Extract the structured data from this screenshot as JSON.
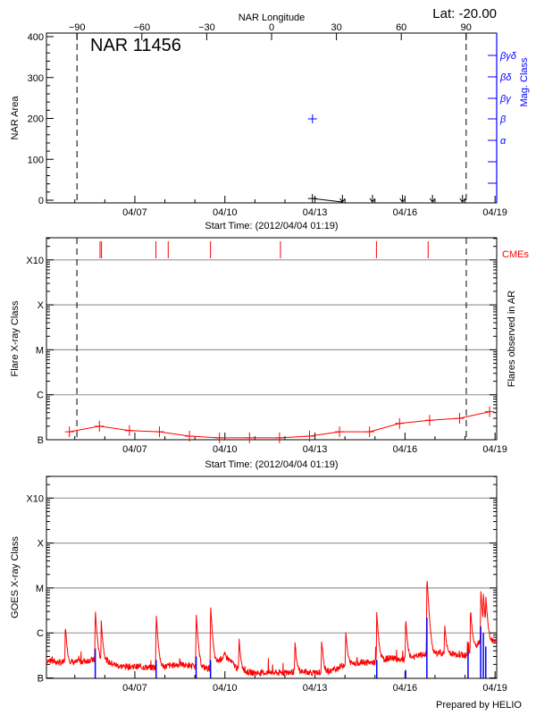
{
  "header": {
    "lat_label": "Lat: -20.00",
    "prepared_by": "Prepared by HELIO"
  },
  "chart_data": [
    {
      "type": "scatter",
      "title": "NAR 11456",
      "top_axis_label": "NAR Longitude",
      "top_ticks": [
        -90,
        -60,
        -30,
        0,
        30,
        60,
        90
      ],
      "xlabel": "Start Time: (2012/04/04 01:19)",
      "xticks": [
        "04/07",
        "04/10",
        "04/13",
        "04/16",
        "04/19"
      ],
      "ylabel": "NAR Area",
      "ylim": [
        0,
        400
      ],
      "yticks": [
        0,
        100,
        200,
        300,
        400
      ],
      "y2label": "Mag. Class",
      "y2ticks": [
        "α",
        "β",
        "βγ",
        "βδ",
        "βγδ"
      ],
      "limb_longitudes": [
        -90,
        90
      ],
      "area": [
        {
          "t": "04/12 22:00",
          "v": 4,
          "marker": "plus"
        },
        {
          "t": "04/13 22:00",
          "v": 0,
          "marker": "arrow-down"
        },
        {
          "t": "04/14 22:00",
          "v": 0,
          "marker": "arrow-down"
        },
        {
          "t": "04/15 22:00",
          "v": 0,
          "marker": "arrow-down"
        },
        {
          "t": "04/16 22:00",
          "v": 0,
          "marker": "arrow-down"
        },
        {
          "t": "04/17 22:00",
          "v": 0,
          "marker": "arrow-down"
        }
      ],
      "mag_class": [
        {
          "t": "04/12 22:00",
          "class": "β"
        }
      ],
      "colors": {
        "area": "#000000",
        "mag": "#0000ff"
      }
    },
    {
      "type": "line",
      "xlabel": "Start Time: (2012/04/04 01:19)",
      "xticks": [
        "04/07",
        "04/10",
        "04/13",
        "04/16",
        "04/19"
      ],
      "ylabel": "Flare X-ray Class",
      "y2label": "Flares observed in AR",
      "yticks": [
        "B",
        "C",
        "M",
        "X",
        "X10"
      ],
      "grid": true,
      "cme_label": "CMEs",
      "cme_times": [
        "04/05 20:10",
        "04/05 21:20",
        "04/07 16:50",
        "04/08 02:40",
        "04/09 12:30",
        "04/11 20:25",
        "04/15 01:10",
        "04/16 18:30"
      ],
      "limb_crossings": [
        "04/05 01:40",
        "04/18 01:00"
      ],
      "flares": [
        {
          "t": "04/04 19:40",
          "class": "B1.5"
        },
        {
          "t": "04/05 19:40",
          "class": "B2.0"
        },
        {
          "t": "04/06 19:40",
          "class": "B1.6"
        },
        {
          "t": "04/07 19:40",
          "class": "B1.5"
        },
        {
          "t": "04/08 19:40",
          "class": "B1.2"
        },
        {
          "t": "04/09 19:40",
          "class": "B1.1"
        },
        {
          "t": "04/10 19:40",
          "class": "B1.1"
        },
        {
          "t": "04/11 19:40",
          "class": "B1.1"
        },
        {
          "t": "04/12 19:40",
          "class": "B1.2"
        },
        {
          "t": "04/13 19:40",
          "class": "B1.5"
        },
        {
          "t": "04/14 19:40",
          "class": "B1.5"
        },
        {
          "t": "04/15 19:40",
          "class": "B2.3"
        },
        {
          "t": "04/16 19:40",
          "class": "B2.7"
        },
        {
          "t": "04/17 19:40",
          "class": "B3.0"
        },
        {
          "t": "04/18 19:40",
          "class": "B4.2"
        }
      ],
      "colors": {
        "flares": "#ff0000",
        "cme": "#ff0000"
      }
    },
    {
      "type": "line",
      "xticks": [
        "04/07",
        "04/10",
        "04/13",
        "04/16",
        "04/19"
      ],
      "ylabel": "GOES X-ray Class",
      "yticks": [
        "B",
        "C",
        "M",
        "X",
        "X10"
      ],
      "grid": true,
      "series": [
        {
          "color": "#ff0000",
          "baseline": [
            [
              "04/04 00:00",
              "B2.5"
            ],
            [
              "04/04 12:00",
              "B2.2"
            ],
            [
              "04/05 00:00",
              "B2.2"
            ],
            [
              "04/05 12:00",
              "B2.5"
            ],
            [
              "04/06 00:00",
              "B2.4"
            ],
            [
              "04/06 12:00",
              "B1.8"
            ],
            [
              "04/07 00:00",
              "B1.8"
            ],
            [
              "04/07 12:00",
              "B1.7"
            ],
            [
              "04/08 00:00",
              "B1.8"
            ],
            [
              "04/08 12:00",
              "B2.0"
            ],
            [
              "04/09 00:00",
              "B1.8"
            ],
            [
              "04/09 12:00",
              "B1.6"
            ],
            [
              "04/10 00:00",
              "B3.2"
            ],
            [
              "04/10 12:00",
              "B1.4"
            ],
            [
              "04/11 00:00",
              "B1.3"
            ],
            [
              "04/11 12:00",
              "B1.3"
            ],
            [
              "04/12 00:00",
              "B1.3"
            ],
            [
              "04/12 12:00",
              "B1.4"
            ],
            [
              "04/13 00:00",
              "B1.3"
            ],
            [
              "04/13 12:00",
              "B1.4"
            ],
            [
              "04/14 00:00",
              "B2.0"
            ],
            [
              "04/14 12:00",
              "B2.2"
            ],
            [
              "04/15 00:00",
              "B2.2"
            ],
            [
              "04/15 12:00",
              "B2.8"
            ],
            [
              "04/16 00:00",
              "B2.5"
            ],
            [
              "04/16 12:00",
              "B3.2"
            ],
            [
              "04/17 00:00",
              "B3.5"
            ],
            [
              "04/17 12:00",
              "B3.5"
            ],
            [
              "04/18 00:00",
              "B3.2"
            ],
            [
              "04/18 12:00",
              "B6.3"
            ],
            [
              "04/19 00:00",
              "B7.1"
            ]
          ],
          "peaks": [
            [
              "04/04 16:20",
              "C1.3"
            ],
            [
              "04/05 16:20",
              "C3.2"
            ],
            [
              "04/05 21:05",
              "C1.6"
            ],
            [
              "04/07 17:00",
              "C2.6"
            ],
            [
              "04/09 01:00",
              "C2.7"
            ],
            [
              "04/09 12:30",
              "C4.1"
            ],
            [
              "04/10 11:15",
              "B6.6"
            ],
            [
              "04/12 07:55",
              "B5.2"
            ],
            [
              "04/13 05:15",
              "B5.8"
            ],
            [
              "04/14 00:30",
              "C1.0"
            ],
            [
              "04/15 01:25",
              "C2.7"
            ],
            [
              "04/16 00:30",
              "C1.9"
            ],
            [
              "04/16 17:30",
              "M1.8"
            ],
            [
              "04/17 07:40",
              "C1.3"
            ],
            [
              "04/18 04:20",
              "C3.2"
            ],
            [
              "04/18 12:30",
              "C9.1"
            ],
            [
              "04/18 14:40",
              "C6.0"
            ],
            [
              "04/18 16:35",
              "C5.5"
            ]
          ]
        },
        {
          "color": "#0000ff",
          "spikes": [
            [
              "04/05 16:20",
              "B4.5"
            ],
            [
              "04/07 17:00",
              "B2.5"
            ],
            [
              "04/09 01:00",
              "B3.0"
            ],
            [
              "04/09 12:30",
              "B2.5"
            ],
            [
              "04/15 01:25",
              "B2.5"
            ],
            [
              "04/16 00:30",
              "B1.5"
            ],
            [
              "04/16 17:30",
              "C2.2"
            ],
            [
              "04/18 02:25",
              "B3.7"
            ],
            [
              "04/18 12:30",
              "C1.4"
            ],
            [
              "04/18 14:40",
              "C1.0"
            ],
            [
              "04/18 16:35",
              "B5.0"
            ]
          ]
        }
      ]
    }
  ]
}
